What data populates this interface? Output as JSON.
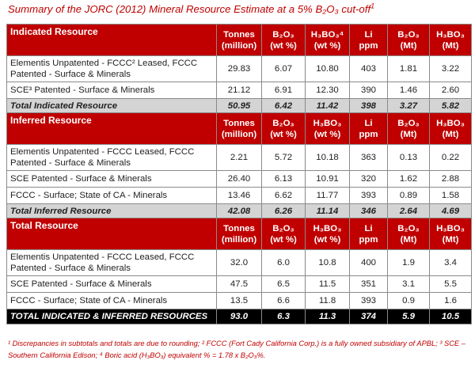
{
  "title": "Summary of the JORC (2012) Mineral Resource Estimate at a 5% B₂O₃ cut-off",
  "title_sup": "1",
  "sections": [
    {
      "name": "Indicated Resource",
      "headers": [
        {
          "top": "Tonnes",
          "bottom": "(million)"
        },
        {
          "top": "B₂O₃",
          "bottom": "(wt %)"
        },
        {
          "top": "H₃BO₃⁴",
          "bottom": "(wt %)"
        },
        {
          "top": "Li",
          "bottom": "ppm"
        },
        {
          "top": "B₂O₃",
          "bottom": "(Mt)"
        },
        {
          "top": "H₃BO₃",
          "bottom": "(Mt)"
        }
      ],
      "rows": [
        {
          "label": "Elementis Unpatented - FCCC² Leased, FCCC Patented - Surface & Minerals",
          "values": [
            "29.83",
            "6.07",
            "10.80",
            "403",
            "1.81",
            "3.22"
          ]
        },
        {
          "label": "SCE³ Patented - Surface & Minerals",
          "values": [
            "21.12",
            "6.91",
            "12.30",
            "390",
            "1.46",
            "2.60"
          ]
        }
      ],
      "total": {
        "label": "Total Indicated Resource",
        "values": [
          "50.95",
          "6.42",
          "11.42",
          "398",
          "3.27",
          "5.82"
        ]
      }
    },
    {
      "name": "Inferred Resource",
      "headers": [
        {
          "top": "Tonnes",
          "bottom": "(million)"
        },
        {
          "top": "B₂O₃",
          "bottom": "(wt %)"
        },
        {
          "top": "H₃BO₃",
          "bottom": "(wt %)"
        },
        {
          "top": "Li",
          "bottom": "ppm"
        },
        {
          "top": "B₂O₃",
          "bottom": "(Mt)"
        },
        {
          "top": "H₃BO₃",
          "bottom": "(Mt)"
        }
      ],
      "rows": [
        {
          "label": "Elementis Unpatented - FCCC Leased, FCCC Patented - Surface & Minerals",
          "values": [
            "2.21",
            "5.72",
            "10.18",
            "363",
            "0.13",
            "0.22"
          ]
        },
        {
          "label": "SCE Patented - Surface & Minerals",
          "values": [
            "26.40",
            "6.13",
            "10.91",
            "320",
            "1.62",
            "2.88"
          ]
        },
        {
          "label": "FCCC - Surface; State of CA - Minerals",
          "values": [
            "13.46",
            "6.62",
            "11.77",
            "393",
            "0.89",
            "1.58"
          ]
        }
      ],
      "total": {
        "label": "Total Inferred Resource",
        "values": [
          "42.08",
          "6.26",
          "11.14",
          "346",
          "2.64",
          "4.69"
        ]
      }
    },
    {
      "name": "Total Resource",
      "headers": [
        {
          "top": "Tonnes",
          "bottom": "(million)"
        },
        {
          "top": "B₂O₃",
          "bottom": "(wt %)"
        },
        {
          "top": "H₃BO₃",
          "bottom": "(wt %)"
        },
        {
          "top": "Li",
          "bottom": "ppm"
        },
        {
          "top": "B₂O₃",
          "bottom": "(Mt)"
        },
        {
          "top": "H₃BO₃",
          "bottom": "(Mt)"
        }
      ],
      "rows": [
        {
          "label": "Elementis Unpatented - FCCC Leased, FCCC Patented - Surface & Minerals",
          "values": [
            "32.0",
            "6.0",
            "10.8",
            "400",
            "1.9",
            "3.4"
          ]
        },
        {
          "label": "SCE Patented - Surface & Minerals",
          "values": [
            "47.5",
            "6.5",
            "11.5",
            "351",
            "3.1",
            "5.5"
          ]
        },
        {
          "label": "FCCC - Surface; State of CA - Minerals",
          "values": [
            "13.5",
            "6.6",
            "11.8",
            "393",
            "0.9",
            "1.6"
          ]
        }
      ]
    }
  ],
  "grand_total": {
    "label": "TOTAL INDICATED & INFERRED RESOURCES",
    "values": [
      "93.0",
      "6.3",
      "11.3",
      "374",
      "5.9",
      "10.5"
    ]
  },
  "footnote": "¹ Discrepancies in subtotals and totals are due to rounding; ² FCCC (Fort Cady California Corp.) is a fully owned subsidiary of APBL; ³ SCE – Southern California Edison; ⁴ Boric acid (H₃BO₃) equivalent % = 1.78 x B₂O₃%."
}
